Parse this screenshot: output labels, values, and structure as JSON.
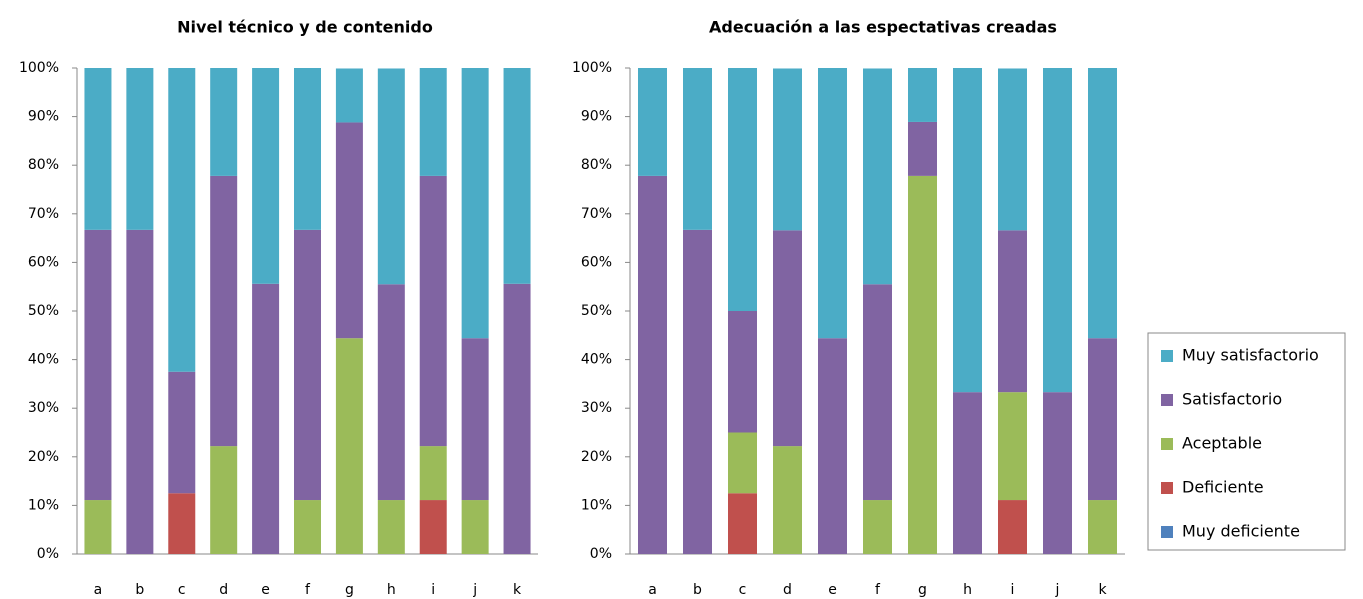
{
  "chart_data": [
    {
      "type": "stacked_bar",
      "title": "Nivel técnico y de contenido",
      "categories": [
        "a",
        "b",
        "c",
        "d",
        "e",
        "f",
        "g",
        "h",
        "i",
        "j",
        "k"
      ],
      "ylim": [
        0,
        100
      ],
      "yticks": [
        {
          "value": 0,
          "label": "0%"
        },
        {
          "value": 10,
          "label": "10%"
        },
        {
          "value": 20,
          "label": "20%"
        },
        {
          "value": 30,
          "label": "30%"
        },
        {
          "value": 40,
          "label": "40%"
        },
        {
          "value": 50,
          "label": "50%"
        },
        {
          "value": 60,
          "label": "60%"
        },
        {
          "value": 70,
          "label": "70%"
        },
        {
          "value": 80,
          "label": "80%"
        },
        {
          "value": 90,
          "label": "90%"
        },
        {
          "value": 100,
          "label": "100%"
        }
      ],
      "series": [
        {
          "color": "#4f81bd",
          "values": [
            0,
            0,
            0,
            0,
            0,
            0,
            0,
            0,
            0,
            0,
            0
          ]
        },
        {
          "color": "#c0504d",
          "values": [
            0,
            0,
            12.5,
            0,
            0,
            0,
            0,
            0,
            11.1,
            0,
            0
          ]
        },
        {
          "color": "#9bbb59",
          "values": [
            11.1,
            0,
            0,
            22.2,
            0,
            11.1,
            44.4,
            11.1,
            11.1,
            11.1,
            0
          ]
        },
        {
          "color": "#8064a2",
          "values": [
            55.6,
            66.7,
            25,
            55.6,
            55.6,
            55.6,
            44.4,
            44.4,
            55.6,
            33.3,
            55.6
          ]
        },
        {
          "color": "#4bacc6",
          "values": [
            33.3,
            33.3,
            62.5,
            22.2,
            44.4,
            33.3,
            11.1,
            44.4,
            22.2,
            55.6,
            44.4
          ]
        }
      ]
    },
    {
      "type": "stacked_bar",
      "title": "Adecuación a las espectativas creadas",
      "categories": [
        "a",
        "b",
        "c",
        "d",
        "e",
        "f",
        "g",
        "h",
        "i",
        "j",
        "k"
      ],
      "ylim": [
        0,
        100
      ],
      "yticks": [
        {
          "value": 0,
          "label": "0%"
        },
        {
          "value": 10,
          "label": "10%"
        },
        {
          "value": 20,
          "label": "20%"
        },
        {
          "value": 30,
          "label": "30%"
        },
        {
          "value": 40,
          "label": "40%"
        },
        {
          "value": 50,
          "label": "50%"
        },
        {
          "value": 60,
          "label": "60%"
        },
        {
          "value": 70,
          "label": "70%"
        },
        {
          "value": 80,
          "label": "80%"
        },
        {
          "value": 90,
          "label": "90%"
        },
        {
          "value": 100,
          "label": "100%"
        }
      ],
      "legend": "right",
      "series": [
        {
          "name": "Muy deficiente",
          "color": "#4f81bd",
          "values": [
            0,
            0,
            0,
            0,
            0,
            0,
            0,
            0,
            0,
            0,
            0
          ]
        },
        {
          "name": "Deficiente",
          "color": "#c0504d",
          "values": [
            0,
            0,
            12.5,
            0,
            0,
            0,
            0,
            0,
            11.1,
            0,
            0
          ]
        },
        {
          "name": "Aceptable",
          "color": "#9bbb59",
          "values": [
            0,
            0,
            12.5,
            22.2,
            0,
            11.1,
            77.8,
            0,
            22.2,
            0,
            11.1
          ]
        },
        {
          "name": "Satisfactorio",
          "color": "#8064a2",
          "values": [
            77.8,
            66.7,
            25,
            44.4,
            44.4,
            44.4,
            11.1,
            33.3,
            33.3,
            33.3,
            33.3
          ]
        },
        {
          "name": "Muy satisfactorio",
          "color": "#4bacc6",
          "values": [
            22.2,
            33.3,
            50,
            33.3,
            55.6,
            44.4,
            11.1,
            66.7,
            33.3,
            66.7,
            55.6
          ]
        }
      ]
    }
  ]
}
